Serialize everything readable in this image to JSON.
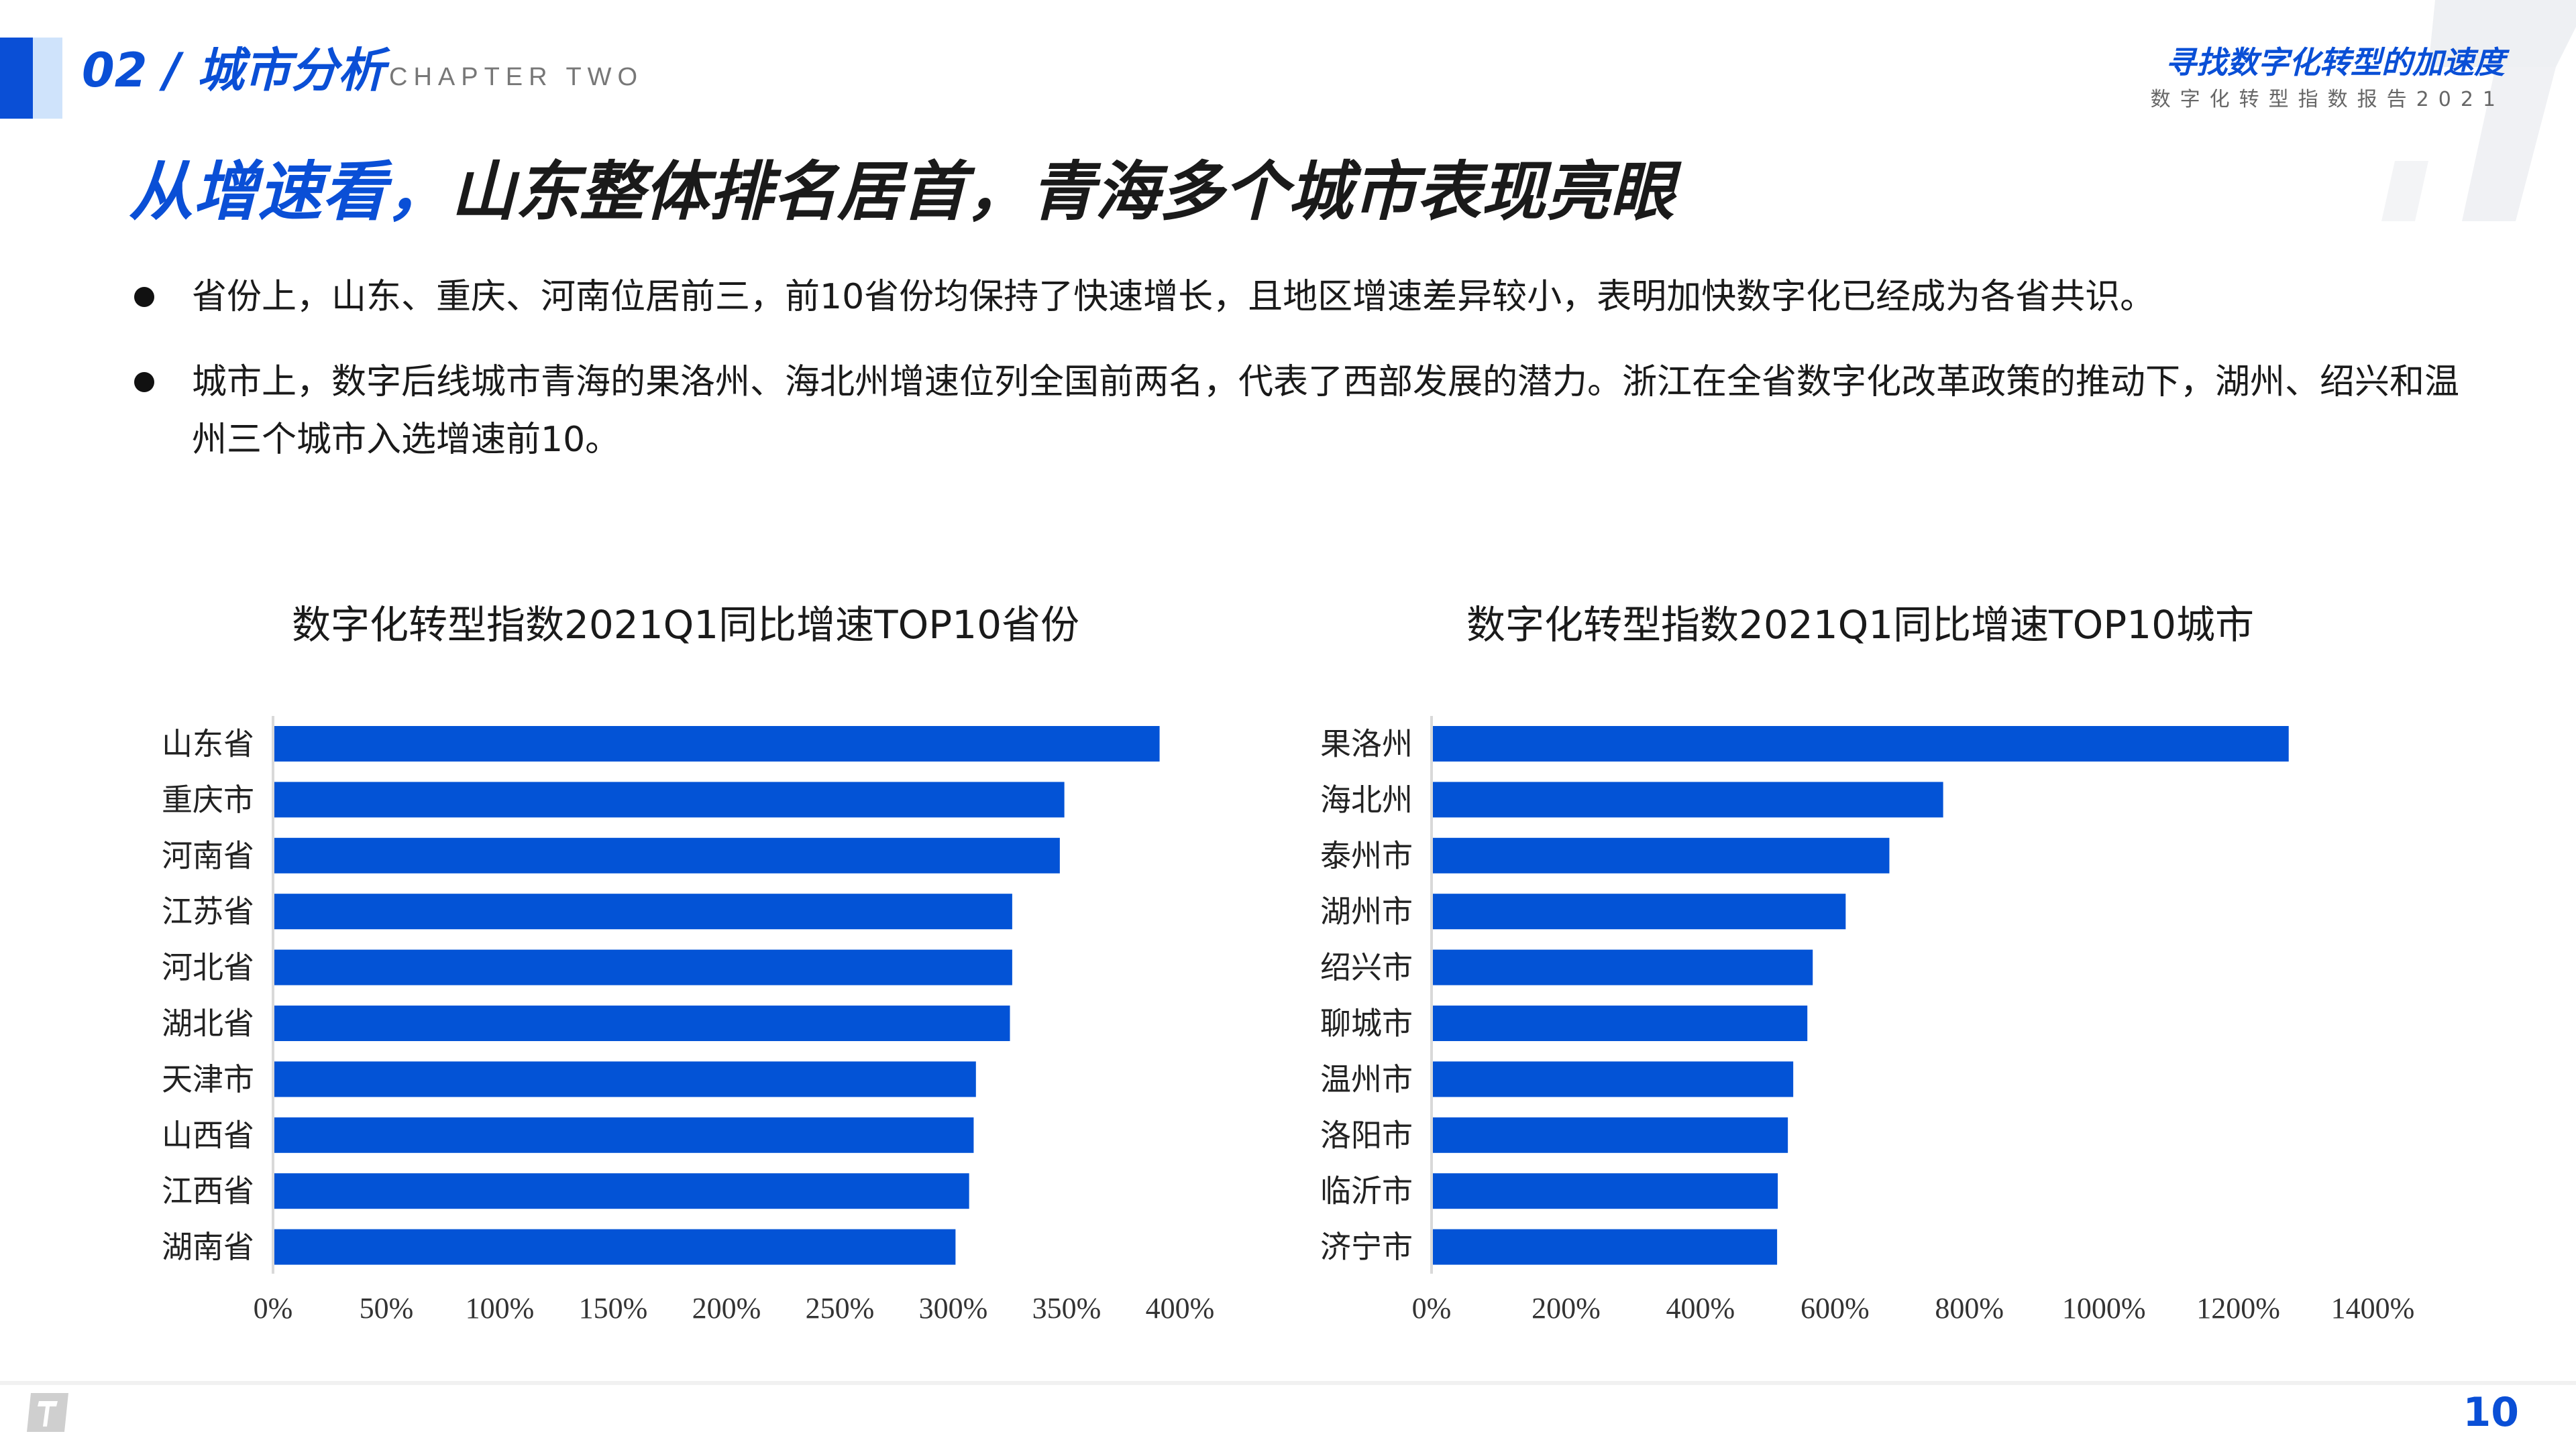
{
  "header": {
    "chapter": "02 / 城市分析",
    "chapter_en": "CHAPTER TWO",
    "report_title": "寻找数字化转型的加速度",
    "report_subtitle": "数字化转型指数报告2021"
  },
  "headline": {
    "highlight": "从增速看，",
    "rest": "山东整体排名居首，青海多个城市表现亮眼"
  },
  "bullets": [
    "省份上，山东、重庆、河南位居前三，前10省份均保持了快速增长，且地区增速差异较小，表明加快数字化已经成为各省共识。",
    "城市上，数字后线城市青海的果洛州、海北州增速位列全国前两名，代表了西部发展的潜力。浙江在全省数字化改革政策的推动下，湖州、绍兴和温州三个城市入选增速前10。"
  ],
  "colors": {
    "accent": "#0a4fd6",
    "bar": "#0353d6"
  },
  "chart_data": [
    {
      "type": "bar",
      "orientation": "horizontal",
      "title": "数字化转型指数2021Q1同比增速TOP10省份",
      "categories": [
        "山东省",
        "重庆市",
        "河南省",
        "江苏省",
        "河北省",
        "湖北省",
        "天津市",
        "山西省",
        "江西省",
        "湖南省"
      ],
      "values": [
        391,
        349,
        347,
        326,
        326,
        325,
        310,
        309,
        307,
        301
      ],
      "unit": "%",
      "xlim": [
        0,
        400
      ],
      "xticks": [
        "0%",
        "50%",
        "100%",
        "150%",
        "200%",
        "250%",
        "300%",
        "350%",
        "400%"
      ],
      "tick_step": 50,
      "grid": false
    },
    {
      "type": "bar",
      "orientation": "horizontal",
      "title": "数字化转型指数2021Q1同比增速TOP10城市",
      "categories": [
        "果洛州",
        "海北州",
        "泰州市",
        "湖州市",
        "绍兴市",
        "聊城市",
        "温州市",
        "洛阳市",
        "临沂市",
        "济宁市"
      ],
      "values": [
        1275,
        761,
        681,
        616,
        567,
        559,
        538,
        530,
        515,
        514
      ],
      "unit": "%",
      "xlim": [
        0,
        1400
      ],
      "xticks": [
        "0%",
        "200%",
        "400%",
        "600%",
        "800%",
        "1000%",
        "1200%",
        "1400%"
      ],
      "tick_step": 200,
      "grid": false
    }
  ],
  "footer": {
    "page_number": "10"
  }
}
